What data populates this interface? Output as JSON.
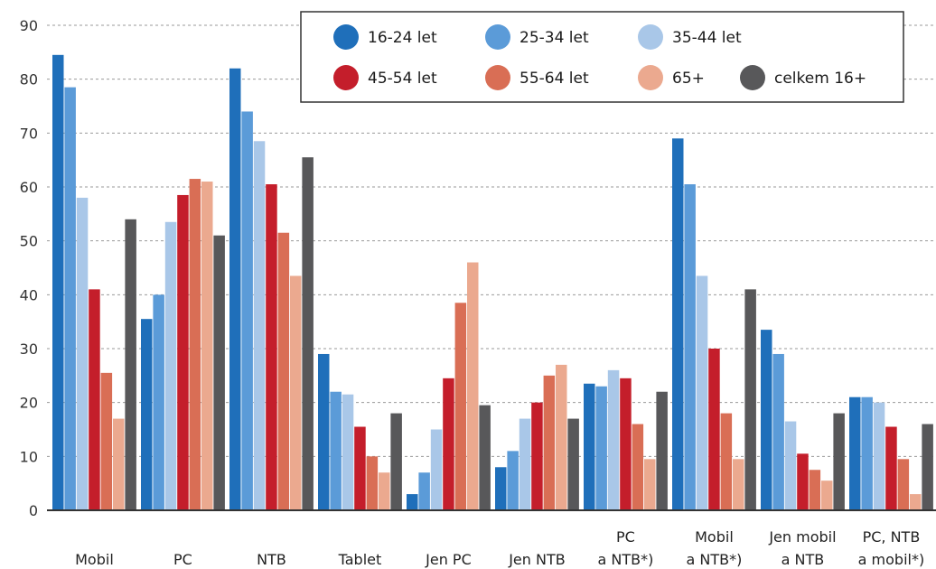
{
  "chart_data": {
    "type": "bar",
    "categories": [
      [
        "Mobil"
      ],
      [
        "PC"
      ],
      [
        "NTB"
      ],
      [
        "Tablet"
      ],
      [
        "Jen PC"
      ],
      [
        "Jen NTB"
      ],
      [
        "PC",
        "a NTB*)"
      ],
      [
        "Mobil",
        "a NTB*)"
      ],
      [
        "Jen mobil",
        "a NTB"
      ],
      [
        "PC, NTB",
        "a mobil*)"
      ]
    ],
    "series": [
      {
        "name": "16-24 let",
        "color": "#1f6fba",
        "values": [
          84.5,
          35.5,
          82,
          29,
          3,
          8,
          23.5,
          69,
          33.5,
          21
        ]
      },
      {
        "name": "25-34 let",
        "color": "#5b9bd8",
        "values": [
          78.5,
          40,
          74,
          22,
          7,
          11,
          23,
          60.5,
          29,
          21
        ]
      },
      {
        "name": "35-44 let",
        "color": "#a9c7e8",
        "values": [
          58,
          53.5,
          68.5,
          21.5,
          15,
          17,
          26,
          43.5,
          16.5,
          20
        ]
      },
      {
        "name": "45-54 let",
        "color": "#c41e2b",
        "values": [
          41,
          58.5,
          60.5,
          15.5,
          24.5,
          20,
          24.5,
          30,
          10.5,
          15.5
        ]
      },
      {
        "name": "55-64 let",
        "color": "#d96e55",
        "values": [
          25.5,
          61.5,
          51.5,
          10,
          38.5,
          25,
          16,
          18,
          7.5,
          9.5
        ]
      },
      {
        "name": "65+",
        "color": "#eba98f",
        "values": [
          17,
          61,
          43.5,
          7,
          46,
          27,
          9.5,
          9.5,
          5.5,
          3
        ]
      },
      {
        "name": "celkem 16+",
        "color": "#58585a",
        "values": [
          54,
          51,
          65.5,
          18,
          19.5,
          17,
          22,
          41,
          18,
          16
        ]
      }
    ],
    "y_ticks": [
      "0",
      "10",
      "20",
      "30",
      "40",
      "50",
      "60",
      "70",
      "80",
      "90"
    ],
    "ylim": [
      0,
      90
    ],
    "grid": true,
    "legend_position": "top-right"
  }
}
